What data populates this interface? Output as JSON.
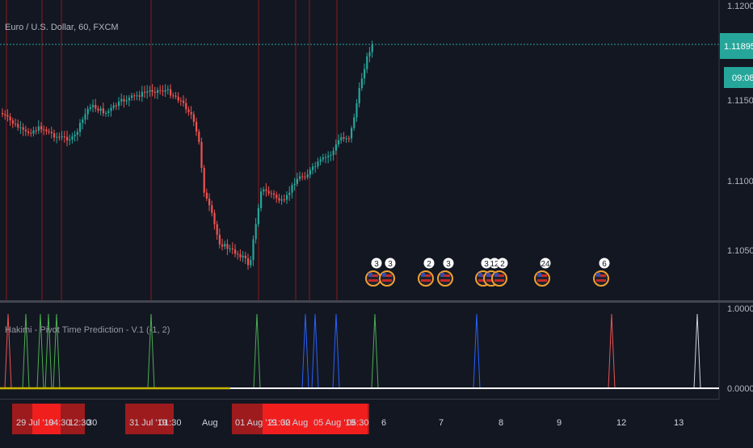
{
  "header": {
    "symbol_title": "Euro / U.S. Dollar, 60, FXCM"
  },
  "price_axis": {
    "ticks": [
      "1.12000",
      "1.11500",
      "1.11000",
      "1.10500"
    ],
    "current_price": "1.11895",
    "countdown": "09:08"
  },
  "indicator": {
    "title": "Hakimi - Pivot Time Prediction - V.1 (-1, 2)",
    "axis_ticks": [
      "1.00000",
      "0.00000"
    ]
  },
  "events": [
    {
      "count": "3"
    },
    {
      "count": "3"
    },
    {
      "count": "2"
    },
    {
      "count": "3"
    },
    {
      "count": "3"
    },
    {
      "count": "12"
    },
    {
      "count": "2"
    },
    {
      "count": "24"
    },
    {
      "count": "6"
    }
  ],
  "time_axis": {
    "labels": [
      "29 Jul '19",
      "04:30",
      "12:30",
      "30",
      "31 Jul '19",
      "01:30",
      "Aug",
      "01 Aug '19",
      "21:30",
      "02 Aug",
      "05 Aug '19",
      "05:30",
      "6",
      "7",
      "8",
      "9",
      "12",
      "13"
    ]
  },
  "colors": {
    "background": "#131722",
    "up_candle": "#26a69a",
    "down_candle": "#ef5350",
    "price_line": "#26a69a",
    "time_highlight": "#d0021b",
    "pivot_green": "#4caf50",
    "pivot_blue": "#2962ff",
    "pivot_red": "#ef5350",
    "pivot_white": "#d1d4dc",
    "baseline_yellow": "#c8b400"
  }
}
